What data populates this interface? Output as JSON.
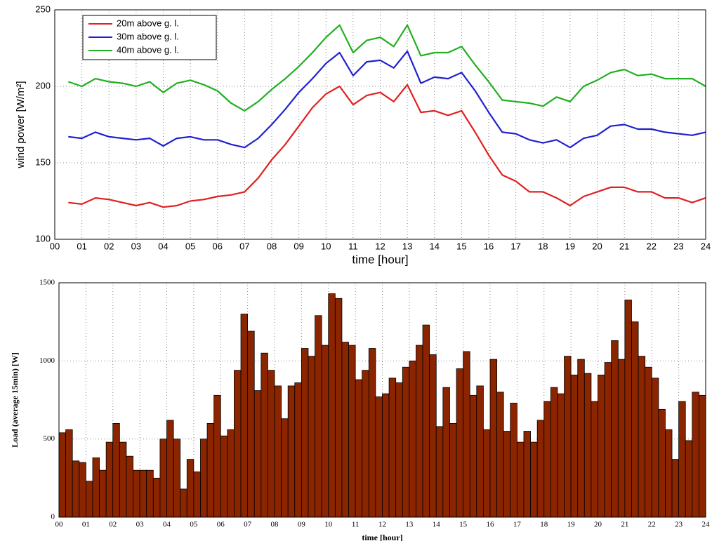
{
  "chart_data": [
    {
      "type": "line",
      "xlabel": "time [hour]",
      "ylabel": "wind power [W/m²]",
      "x": [
        0.5,
        1,
        1.5,
        2,
        2.5,
        3,
        3.5,
        4,
        4.5,
        5,
        5.5,
        6,
        6.5,
        7,
        7.5,
        8,
        8.5,
        9,
        9.5,
        10,
        10.5,
        11,
        11.5,
        12,
        12.5,
        13,
        13.5,
        14,
        14.5,
        15,
        15.5,
        16,
        16.5,
        17,
        17.5,
        18,
        18.5,
        19,
        19.5,
        20,
        20.5,
        21,
        21.5,
        22,
        22.5,
        23,
        23.5,
        24
      ],
      "series": [
        {
          "name": "20m above g. l.",
          "color": "#e02020",
          "values": [
            124,
            123,
            127,
            126,
            124,
            122,
            124,
            121,
            122,
            125,
            126,
            128,
            129,
            131,
            140,
            152,
            162,
            174,
            186,
            195,
            200,
            188,
            194,
            196,
            190,
            201,
            183,
            184,
            181,
            184,
            170,
            155,
            142,
            138,
            131,
            131,
            127,
            122,
            128,
            131,
            134,
            134,
            131,
            131,
            127,
            127,
            124,
            127
          ]
        },
        {
          "name": "30m above g. l.",
          "color": "#2020d0",
          "values": [
            167,
            166,
            170,
            167,
            166,
            165,
            166,
            161,
            166,
            167,
            165,
            165,
            162,
            160,
            166,
            175,
            185,
            196,
            205,
            215,
            222,
            207,
            216,
            217,
            212,
            223,
            202,
            206,
            205,
            209,
            197,
            183,
            170,
            169,
            165,
            163,
            165,
            160,
            166,
            168,
            174,
            175,
            172,
            172,
            170,
            169,
            168,
            170
          ]
        },
        {
          "name": "40m above g. l.",
          "color": "#20b020",
          "values": [
            203,
            200,
            205,
            203,
            202,
            200,
            203,
            196,
            202,
            204,
            201,
            197,
            189,
            184,
            190,
            198,
            205,
            213,
            222,
            232,
            240,
            222,
            230,
            232,
            226,
            240,
            220,
            222,
            222,
            226,
            214,
            203,
            191,
            190,
            189,
            187,
            193,
            190,
            200,
            204,
            209,
            211,
            207,
            208,
            205,
            205,
            205,
            200
          ]
        }
      ],
      "xlim": [
        0,
        24
      ],
      "xticks": [
        {
          "value": 0,
          "label": "00"
        },
        {
          "value": 1,
          "label": "01"
        },
        {
          "value": 2,
          "label": "02"
        },
        {
          "value": 3,
          "label": "03"
        },
        {
          "value": 4,
          "label": "04"
        },
        {
          "value": 5,
          "label": "05"
        },
        {
          "value": 6,
          "label": "06"
        },
        {
          "value": 7,
          "label": "07"
        },
        {
          "value": 8,
          "label": "08"
        },
        {
          "value": 9,
          "label": "09"
        },
        10,
        11,
        12,
        13,
        14,
        15,
        16,
        17,
        18,
        19,
        20,
        21,
        22,
        23,
        24
      ],
      "ylim": [
        100,
        250
      ],
      "yticks": [
        100,
        150,
        200,
        250
      ],
      "grid": true,
      "legend": "upper-left"
    },
    {
      "type": "histogram",
      "xlabel": "time [hour]",
      "ylabel": "Load (average 15min) [W]",
      "color": "#8b2500",
      "bins": [
        0,
        0.25,
        0.5,
        0.75,
        1,
        1.25,
        1.5,
        1.75,
        2,
        2.25,
        2.5,
        2.75,
        3,
        3.25,
        3.5,
        3.75,
        4,
        4.25,
        4.5,
        4.75,
        5,
        5.25,
        5.5,
        5.75,
        6,
        6.25,
        6.5,
        6.75,
        7,
        7.25,
        7.5,
        7.75,
        8,
        8.25,
        8.5,
        8.75,
        9,
        9.25,
        9.5,
        9.75,
        10,
        10.25,
        10.5,
        10.75,
        11,
        11.25,
        11.5,
        11.75,
        12,
        12.25,
        12.5,
        12.75,
        13,
        13.25,
        13.5,
        13.75,
        14,
        14.25,
        14.5,
        14.75,
        15,
        15.25,
        15.5,
        15.75,
        16,
        16.25,
        16.5,
        16.75,
        17,
        17.25,
        17.5,
        17.75,
        18,
        18.25,
        18.5,
        18.75,
        19,
        19.25,
        19.5,
        19.75,
        20,
        20.25,
        20.5,
        20.75,
        21,
        21.25,
        21.5,
        21.75,
        22,
        22.25,
        22.5,
        22.75,
        23,
        23.25,
        23.5,
        23.75,
        24
      ],
      "values": [
        540,
        560,
        360,
        350,
        230,
        380,
        300,
        480,
        600,
        480,
        390,
        300,
        300,
        300,
        250,
        500,
        620,
        500,
        180,
        370,
        290,
        500,
        600,
        780,
        520,
        560,
        940,
        1300,
        1190,
        810,
        1050,
        940,
        840,
        630,
        840,
        860,
        1080,
        1030,
        1290,
        1100,
        1430,
        1400,
        1120,
        1100,
        880,
        940,
        1080,
        770,
        790,
        890,
        860,
        960,
        1000,
        1100,
        1230,
        1040,
        580,
        830,
        600,
        950,
        1060,
        780,
        840,
        560,
        1010,
        800,
        550,
        730,
        480,
        550,
        480,
        620,
        740,
        830,
        790,
        1030,
        910,
        1010,
        920,
        740,
        910,
        990,
        1130,
        1010,
        1390,
        1250,
        1030,
        960,
        890,
        690,
        560,
        370,
        740,
        490,
        800,
        780
      ],
      "xlim": [
        0,
        24
      ],
      "xticks": [
        {
          "value": 0,
          "label": "00"
        },
        {
          "value": 1,
          "label": "01"
        },
        {
          "value": 2,
          "label": "02"
        },
        {
          "value": 3,
          "label": "03"
        },
        {
          "value": 4,
          "label": "04"
        },
        {
          "value": 5,
          "label": "05"
        },
        {
          "value": 6,
          "label": "06"
        },
        {
          "value": 7,
          "label": "07"
        },
        {
          "value": 8,
          "label": "08"
        },
        {
          "value": 9,
          "label": "09"
        },
        10,
        11,
        12,
        13,
        14,
        15,
        16,
        17,
        18,
        19,
        20,
        21,
        22,
        23,
        24
      ],
      "ylim": [
        0,
        1500
      ],
      "yticks": [
        0,
        500,
        1000,
        1500
      ],
      "grid": true
    }
  ]
}
